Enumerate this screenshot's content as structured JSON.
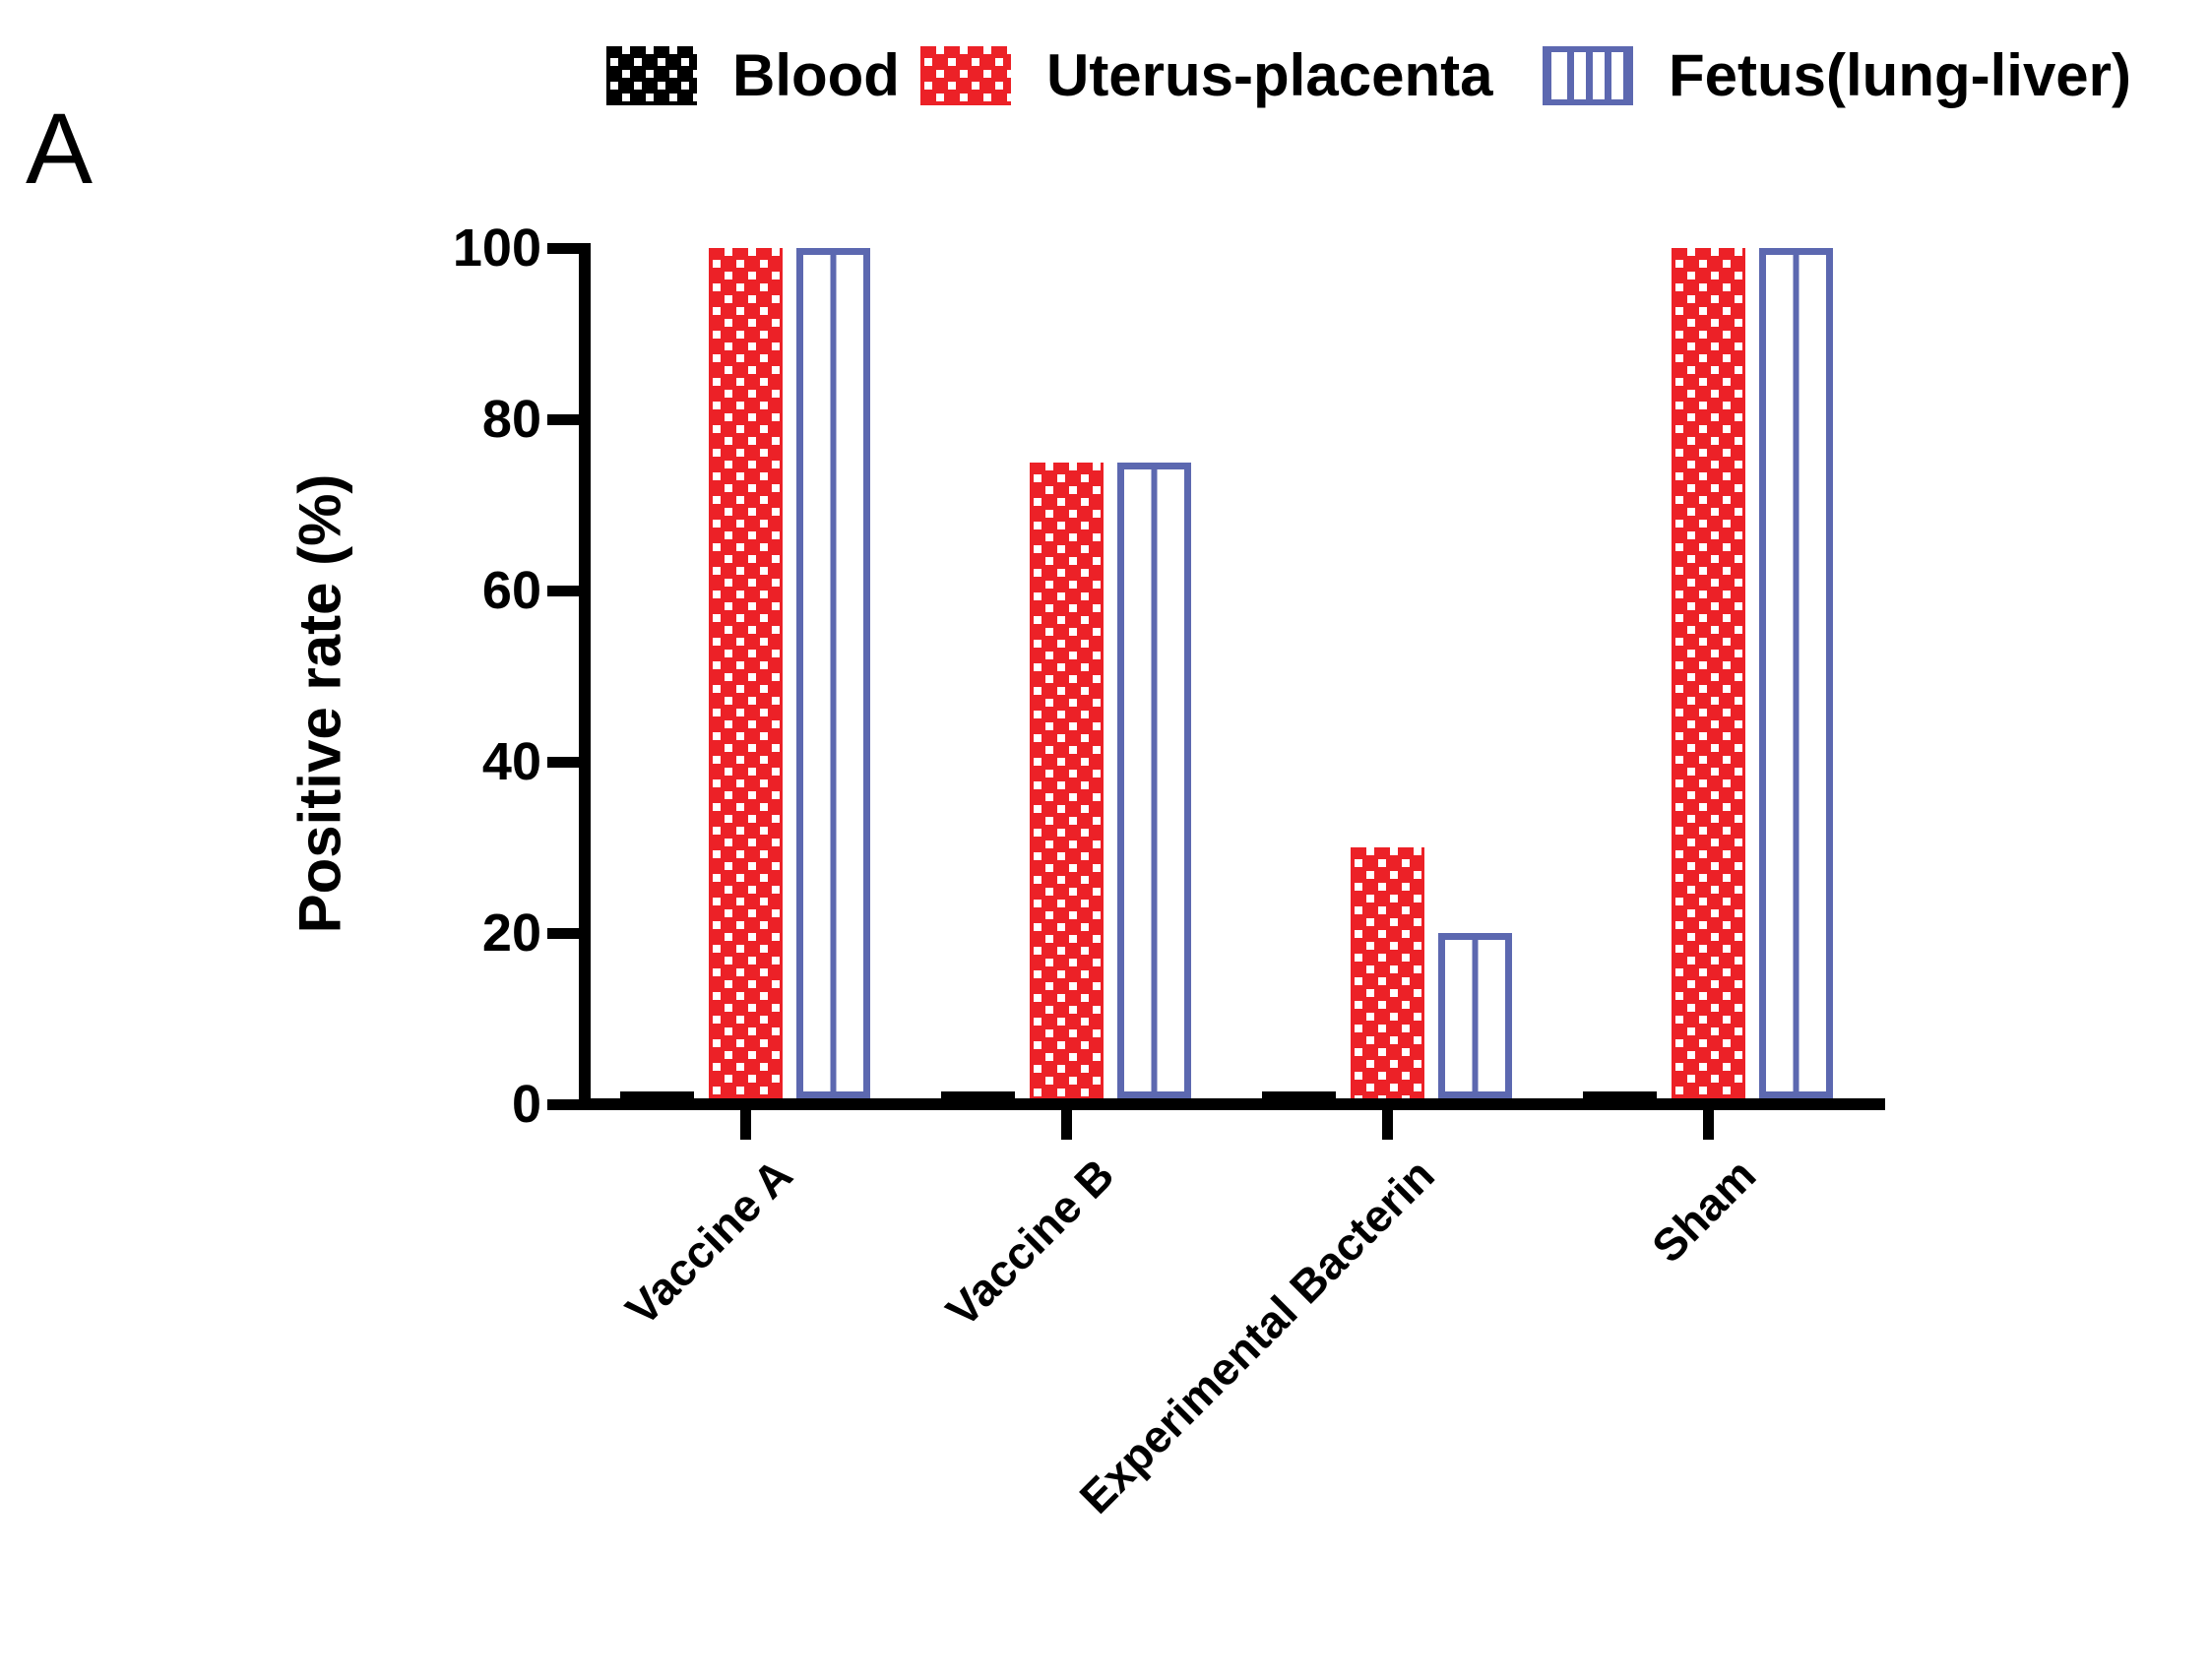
{
  "chart_data": {
    "type": "bar",
    "panel_label": "A",
    "title": "",
    "ylabel": "Positive rate (%)",
    "xlabel": "",
    "ylim": [
      0,
      100
    ],
    "yticks": [
      0,
      20,
      40,
      60,
      80,
      100
    ],
    "grid": false,
    "legend_position": "top",
    "categories": [
      "Vaccine A",
      "Vaccine B",
      "Experimental Bacterin",
      "Sham"
    ],
    "series": [
      {
        "name": "Blood",
        "color": "#000000",
        "pattern": "checker",
        "values": [
          1.5,
          1.5,
          1.5,
          1.5
        ]
      },
      {
        "name": "Uterus-placenta",
        "color": "#ec2127",
        "pattern": "checker",
        "values": [
          100,
          75,
          30,
          100
        ]
      },
      {
        "name": "Fetus(lung-liver)",
        "color": "#5c68b0",
        "pattern": "vertical-stripes",
        "values": [
          100,
          75,
          20,
          100
        ]
      }
    ]
  }
}
